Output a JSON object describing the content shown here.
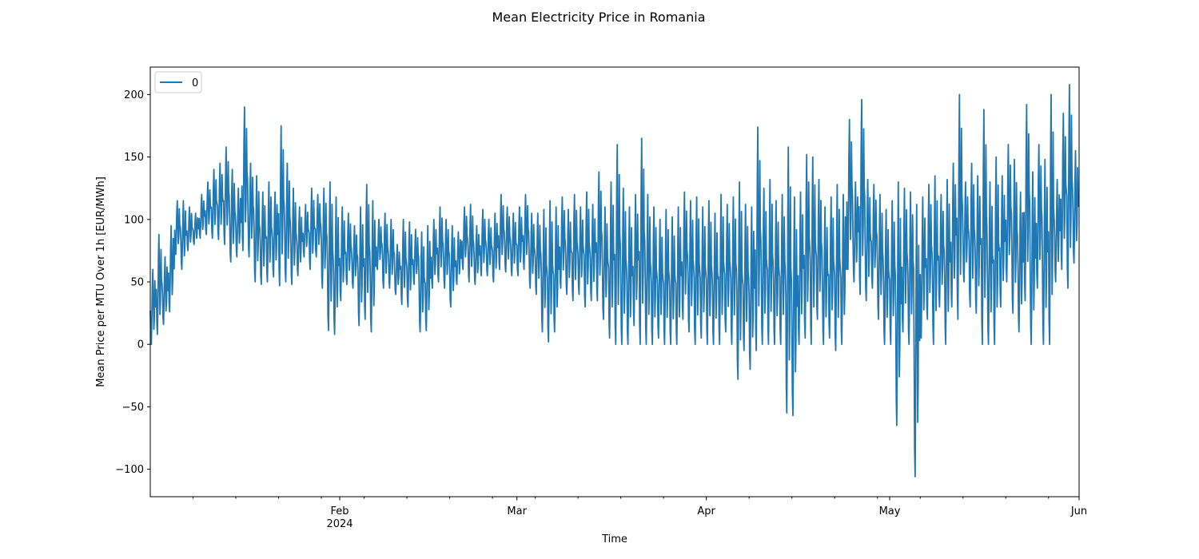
{
  "chart_data": {
    "type": "line",
    "title": "Mean Electricity Price in Romania",
    "xlabel": "Time",
    "ylabel": "Mean Price per MTU Over 1h [EUR/MWh]",
    "xlim": [
      "2024-01-01",
      "2024-06-01"
    ],
    "ylim": [
      -122,
      222
    ],
    "grid": false,
    "legend": {
      "placement": "top-left",
      "entries": [
        "0"
      ]
    },
    "x_ticks_major": [
      {
        "date": "2024-02-01",
        "label": "Feb",
        "sublabel": "2024"
      },
      {
        "date": "2024-03-01",
        "label": "Mar",
        "sublabel": ""
      },
      {
        "date": "2024-04-01",
        "label": "Apr",
        "sublabel": ""
      },
      {
        "date": "2024-05-01",
        "label": "May",
        "sublabel": ""
      },
      {
        "date": "2024-06-01",
        "label": "Jun",
        "sublabel": ""
      }
    ],
    "x_ticks_minor": [
      "2024-01-08",
      "2024-01-15",
      "2024-01-22",
      "2024-01-29",
      "2024-02-05",
      "2024-02-12",
      "2024-02-19",
      "2024-02-26",
      "2024-03-04",
      "2024-03-11",
      "2024-03-18",
      "2024-03-25",
      "2024-04-08",
      "2024-04-15",
      "2024-04-22",
      "2024-04-29",
      "2024-05-06",
      "2024-05-13",
      "2024-05-20",
      "2024-05-27"
    ],
    "y_ticks": [
      -100,
      -50,
      0,
      50,
      100,
      150,
      200
    ],
    "y_tick_labels": [
      "−100",
      "−50",
      "0",
      "50",
      "100",
      "150",
      "200"
    ],
    "series": [
      {
        "name": "0",
        "color": "#1f77b4",
        "x": [
          "2024-01-01",
          "2024-01-02",
          "2024-01-03",
          "2024-01-04",
          "2024-01-05",
          "2024-01-06",
          "2024-01-07",
          "2024-01-08",
          "2024-01-09",
          "2024-01-10",
          "2024-01-11",
          "2024-01-12",
          "2024-01-13",
          "2024-01-14",
          "2024-01-15",
          "2024-01-16",
          "2024-01-17",
          "2024-01-18",
          "2024-01-19",
          "2024-01-20",
          "2024-01-21",
          "2024-01-22",
          "2024-01-23",
          "2024-01-24",
          "2024-01-25",
          "2024-01-26",
          "2024-01-27",
          "2024-01-28",
          "2024-01-29",
          "2024-01-30",
          "2024-01-31",
          "2024-02-01",
          "2024-02-02",
          "2024-02-03",
          "2024-02-04",
          "2024-02-05",
          "2024-02-06",
          "2024-02-07",
          "2024-02-08",
          "2024-02-09",
          "2024-02-10",
          "2024-02-11",
          "2024-02-12",
          "2024-02-13",
          "2024-02-14",
          "2024-02-15",
          "2024-02-16",
          "2024-02-17",
          "2024-02-18",
          "2024-02-19",
          "2024-02-20",
          "2024-02-21",
          "2024-02-22",
          "2024-02-23",
          "2024-02-24",
          "2024-02-25",
          "2024-02-26",
          "2024-02-27",
          "2024-02-28",
          "2024-02-29",
          "2024-03-01",
          "2024-03-02",
          "2024-03-03",
          "2024-03-04",
          "2024-03-05",
          "2024-03-06",
          "2024-03-07",
          "2024-03-08",
          "2024-03-09",
          "2024-03-10",
          "2024-03-11",
          "2024-03-12",
          "2024-03-13",
          "2024-03-14",
          "2024-03-15",
          "2024-03-16",
          "2024-03-17",
          "2024-03-18",
          "2024-03-19",
          "2024-03-20",
          "2024-03-21",
          "2024-03-22",
          "2024-03-23",
          "2024-03-24",
          "2024-03-25",
          "2024-03-26",
          "2024-03-27",
          "2024-03-28",
          "2024-03-29",
          "2024-03-30",
          "2024-03-31",
          "2024-04-01",
          "2024-04-02",
          "2024-04-03",
          "2024-04-04",
          "2024-04-05",
          "2024-04-06",
          "2024-04-07",
          "2024-04-08",
          "2024-04-09",
          "2024-04-10",
          "2024-04-11",
          "2024-04-12",
          "2024-04-13",
          "2024-04-14",
          "2024-04-15",
          "2024-04-16",
          "2024-04-17",
          "2024-04-18",
          "2024-04-19",
          "2024-04-20",
          "2024-04-21",
          "2024-04-22",
          "2024-04-23",
          "2024-04-24",
          "2024-04-25",
          "2024-04-26",
          "2024-04-27",
          "2024-04-28",
          "2024-04-29",
          "2024-04-30",
          "2024-05-01",
          "2024-05-02",
          "2024-05-03",
          "2024-05-04",
          "2024-05-05",
          "2024-05-06",
          "2024-05-07",
          "2024-05-08",
          "2024-05-09",
          "2024-05-10",
          "2024-05-11",
          "2024-05-12",
          "2024-05-13",
          "2024-05-14",
          "2024-05-15",
          "2024-05-16",
          "2024-05-17",
          "2024-05-18",
          "2024-05-19",
          "2024-05-20",
          "2024-05-21",
          "2024-05-22",
          "2024-05-23",
          "2024-05-24",
          "2024-05-25",
          "2024-05-26",
          "2024-05-27",
          "2024-05-28",
          "2024-05-29",
          "2024-05-30",
          "2024-05-31",
          "2024-06-01"
        ],
        "daily_max": [
          60,
          88,
          70,
          95,
          115,
          115,
          110,
          105,
          120,
          130,
          140,
          145,
          158,
          140,
          125,
          190,
          145,
          135,
          122,
          130,
          122,
          175,
          145,
          125,
          110,
          112,
          125,
          120,
          125,
          130,
          118,
          110,
          105,
          95,
          110,
          128,
          115,
          100,
          105,
          100,
          80,
          100,
          98,
          92,
          90,
          95,
          100,
          110,
          100,
          95,
          90,
          110,
          112,
          95,
          108,
          100,
          105,
          120,
          110,
          105,
          110,
          120,
          105,
          105,
          108,
          115,
          110,
          118,
          108,
          120,
          110,
          122,
          112,
          138,
          110,
          130,
          160,
          125,
          110,
          120,
          165,
          120,
          110,
          100,
          108,
          102,
          110,
          122,
          115,
          118,
          110,
          115,
          105,
          120,
          112,
          118,
          130,
          112,
          110,
          174,
          125,
          132,
          115,
          120,
          158,
          118,
          122,
          152,
          150,
          132,
          110,
          118,
          128,
          120,
          180,
          130,
          196,
          132,
          128,
          120,
          108,
          115,
          130,
          125,
          122,
          112,
          118,
          128,
          135,
          120,
          132,
          145,
          200,
          130,
          145,
          135,
          188,
          130,
          150,
          135,
          160,
          148,
          122,
          192,
          138,
          160,
          148,
          200,
          132,
          185,
          208,
          155
        ],
        "daily_min": [
          0,
          8,
          16,
          26,
          72,
          60,
          75,
          80,
          85,
          88,
          85,
          84,
          80,
          66,
          70,
          75,
          70,
          50,
          48,
          50,
          54,
          47,
          50,
          48,
          55,
          70,
          60,
          70,
          45,
          11,
          8,
          35,
          48,
          45,
          15,
          20,
          10,
          60,
          45,
          45,
          40,
          32,
          30,
          48,
          10,
          11,
          45,
          50,
          45,
          30,
          48,
          60,
          50,
          48,
          55,
          55,
          50,
          60,
          58,
          55,
          55,
          60,
          45,
          40,
          10,
          2,
          10,
          45,
          40,
          35,
          40,
          30,
          35,
          35,
          20,
          5,
          0,
          0,
          0,
          15,
          0,
          0,
          0,
          5,
          0,
          0,
          0,
          20,
          10,
          0,
          5,
          0,
          0,
          0,
          10,
          0,
          -28,
          -5,
          -20,
          -5,
          0,
          0,
          0,
          0,
          -55,
          -57,
          0,
          5,
          0,
          20,
          0,
          5,
          -5,
          0,
          60,
          50,
          40,
          35,
          45,
          20,
          0,
          0,
          -65,
          10,
          0,
          -106,
          5,
          20,
          0,
          30,
          0,
          30,
          20,
          50,
          30,
          25,
          0,
          0,
          0,
          30,
          50,
          25,
          10,
          35,
          0,
          45,
          0,
          0,
          50,
          60,
          45,
          65,
          70,
          70
        ]
      }
    ]
  }
}
